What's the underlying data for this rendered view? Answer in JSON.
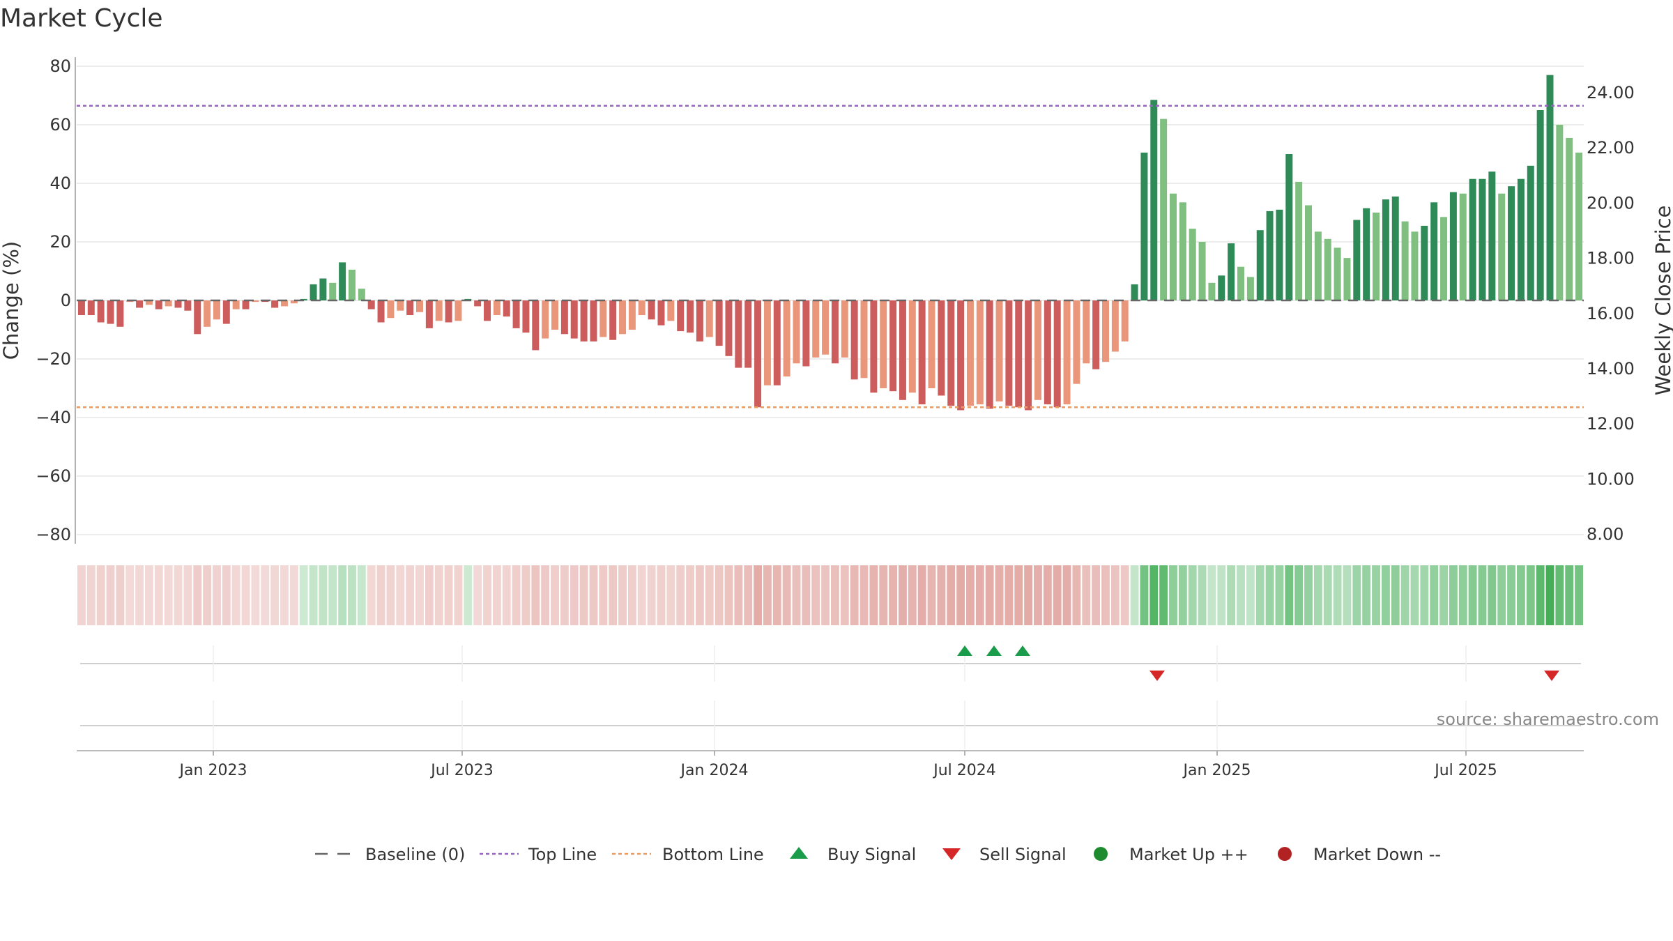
{
  "chart_data": {
    "type": "bar",
    "title": "Market Cycle",
    "ylabel": "Change (%)",
    "y2label": "Weekly Close Price",
    "ylim": [
      -80,
      80
    ],
    "y2lim": [
      8,
      24
    ],
    "yticks": [
      "80",
      "60",
      "40",
      "20",
      "0",
      "−20",
      "−40",
      "−60",
      "−80"
    ],
    "y2ticks": [
      "24.00",
      "22.00",
      "20.00",
      "18.00",
      "16.00",
      "14.00",
      "12.00",
      "10.00",
      "8.00"
    ],
    "xtick_labels": [
      "Jan 2023",
      "Jul 2023",
      "Jan 2024",
      "Jul 2024",
      "Jan 2025",
      "Jul 2025"
    ],
    "reference_lines": {
      "baseline": 0,
      "top_line": 66.5,
      "bottom_line": -36.5
    },
    "series": [
      {
        "name": "Change (%)",
        "values": [
          -5,
          -5,
          -7.5,
          -8,
          -9,
          -0.5,
          -2.5,
          -1.5,
          -3,
          -2,
          -2.5,
          -3.5,
          -11.5,
          -9,
          -6.5,
          -8,
          -3,
          -3,
          -0.5,
          -0.5,
          -2.5,
          -2,
          -1,
          0.5,
          5.5,
          7.5,
          6,
          13,
          10.5,
          4,
          -3,
          -7.5,
          -6,
          -3.5,
          -5,
          -4,
          -9.5,
          -7,
          -7.5,
          -7,
          0.5,
          -2,
          -7,
          -5,
          -5.5,
          -9.5,
          -11,
          -17,
          -13,
          -10,
          -11.5,
          -13,
          -14,
          -14,
          -12.5,
          -13.5,
          -11.5,
          -10,
          -5,
          -6.5,
          -8.5,
          -7,
          -10.5,
          -11,
          -14,
          -12.5,
          -15.5,
          -19,
          -23,
          -23,
          -36.5,
          -29,
          -29,
          -26,
          -21.5,
          -22.5,
          -19.5,
          -18.5,
          -21.5,
          -19.5,
          -27,
          -26.5,
          -31.5,
          -30,
          -31,
          -34,
          -31.5,
          -35.5,
          -30,
          -32.5,
          -36,
          -37.5,
          -36,
          -35.5,
          -37,
          -34.5,
          -36,
          -36.5,
          -37.5,
          -34,
          -35.5,
          -36.5,
          -35.5,
          -28.5,
          -21.5,
          -23.5,
          -21,
          -17.5,
          -14,
          5.5,
          50.5,
          68.5,
          62,
          36.5,
          33.5,
          24.5,
          20,
          6,
          8.5,
          19.5,
          11.5,
          8,
          24,
          30.5,
          31,
          50,
          40.5,
          32.5,
          23.5,
          21,
          18,
          14.5,
          27.5,
          31.5,
          30,
          34.5,
          35.5,
          27,
          23.5,
          25.5,
          33.5,
          28.5,
          37,
          36.5,
          41.5,
          41.5,
          44,
          36.5,
          39,
          41.5,
          46,
          65,
          77,
          60,
          55.5,
          50.5
        ]
      }
    ],
    "signals": {
      "buy_signal_dates": [
        "Jul 2024",
        "Jul 2024",
        "Aug 2024"
      ],
      "sell_signal_dates": [
        "Nov 2024",
        "Sep 2025"
      ]
    },
    "legend": {
      "placement": "bottom-center",
      "entries": [
        "Baseline (0)",
        "Top Line",
        "Bottom Line",
        "Buy Signal",
        "Sell Signal",
        "Market Up ++",
        "Market Down --"
      ]
    },
    "grid": true
  },
  "source": "source: sharemaestro.com",
  "colors": {
    "up_strong": "#2e8b57",
    "up_light": "#7fbf7f",
    "down_strong": "#cd5c5c",
    "down_light": "#e9967a",
    "top_line": "#9467bd",
    "bottom_line": "#e89b63",
    "buy": "#1a9c4a",
    "sell": "#d62728",
    "market_up": "#1e8c2e",
    "market_down": "#b22222",
    "baseline": "#666666"
  }
}
